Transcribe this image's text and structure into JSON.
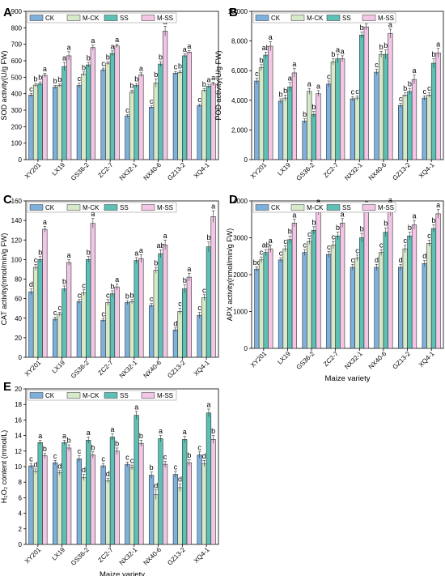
{
  "chart_data": [
    {
      "type": "bar",
      "panel": "A",
      "ylabel": "SOD activity(U/g FW)",
      "xlabel": "",
      "ylim": [
        0,
        900
      ],
      "yticks": [
        0,
        100,
        200,
        300,
        400,
        500,
        600,
        700,
        800,
        900
      ],
      "categories": [
        "XY201",
        "LX19",
        "GS36-2",
        "ZC2-7",
        "NX32-1",
        "NX40-6",
        "GZ13-2",
        "XQ4-1"
      ],
      "legend": "top-left",
      "series": [
        {
          "name": "CK",
          "values": [
            392,
            440,
            450,
            545,
            265,
            318,
            525,
            328
          ],
          "err": [
            10,
            10,
            15,
            10,
            8,
            8,
            10,
            8
          ],
          "letters": [
            "c",
            "b",
            "c",
            "c",
            "c",
            "c",
            "c",
            "c"
          ]
        },
        {
          "name": "M-CK",
          "values": [
            452,
            450,
            520,
            585,
            410,
            465,
            530,
            420
          ],
          "err": [
            10,
            10,
            12,
            10,
            12,
            25,
            10,
            10
          ],
          "letters": [
            "b",
            "b",
            "b",
            "b",
            "b",
            "b",
            "b",
            "b"
          ]
        },
        {
          "name": "SS",
          "values": [
            460,
            565,
            575,
            645,
            450,
            580,
            630,
            445
          ],
          "err": [
            12,
            25,
            15,
            15,
            12,
            15,
            12,
            12
          ],
          "letters": [
            "b",
            "a",
            "b",
            "a",
            "b",
            "b",
            "a",
            "a"
          ]
        },
        {
          "name": "M-SS",
          "values": [
            512,
            630,
            680,
            690,
            515,
            780,
            652,
            460
          ],
          "err": [
            12,
            25,
            15,
            10,
            12,
            30,
            10,
            10
          ],
          "letters": [
            "a",
            "a",
            "a",
            "a",
            "a",
            "a",
            "a",
            "a"
          ]
        }
      ]
    },
    {
      "type": "bar",
      "panel": "B",
      "ylabel": "POD activity(U/g FW)",
      "xlabel": "",
      "ylim": [
        0,
        10000
      ],
      "yticks": [
        0,
        2000,
        4000,
        6000,
        8000,
        10000
      ],
      "ytick_labels": [
        "0",
        "2,000",
        "4,000",
        "6,000",
        "8,000",
        "10,000"
      ],
      "categories": [
        "XY201",
        "LX19",
        "GS36-2",
        "ZC2-7",
        "NX32-1",
        "NX40-6",
        "GZ13-2",
        "XQ4-1"
      ],
      "legend": "top-left",
      "series": [
        {
          "name": "CK",
          "values": [
            5300,
            3950,
            2600,
            5100,
            4100,
            5900,
            3650,
            4150
          ],
          "err": [
            200,
            150,
            150,
            200,
            150,
            200,
            150,
            150
          ],
          "letters": [
            "c",
            "b",
            "b",
            "c",
            "c",
            "c",
            "c",
            "c"
          ]
        },
        {
          "name": "M-CK",
          "values": [
            6200,
            4150,
            4600,
            6600,
            4150,
            7100,
            4350,
            4350
          ],
          "err": [
            200,
            200,
            200,
            200,
            150,
            200,
            150,
            150
          ],
          "letters": [
            "b",
            "b",
            "a",
            "b",
            "c",
            "b",
            "b",
            "c"
          ]
        },
        {
          "name": "SS",
          "values": [
            7050,
            4900,
            3050,
            6800,
            8400,
            7100,
            4600,
            6500
          ],
          "err": [
            200,
            300,
            200,
            300,
            200,
            300,
            200,
            300
          ],
          "letters": [
            "ab",
            "a",
            "b",
            "a",
            "b",
            "b",
            "b",
            "b"
          ]
        },
        {
          "name": "M-SS",
          "values": [
            7650,
            5850,
            4450,
            6800,
            8950,
            8500,
            5400,
            7200
          ],
          "err": [
            300,
            300,
            200,
            200,
            200,
            300,
            300,
            300
          ],
          "letters": [
            "a",
            "a",
            "a",
            "a",
            "a",
            "a",
            "a",
            "a"
          ]
        }
      ]
    },
    {
      "type": "bar",
      "panel": "C",
      "ylabel": "CAT activity(nmol/min/g FW)",
      "xlabel": "",
      "ylim": [
        0,
        160
      ],
      "yticks": [
        0,
        20,
        40,
        60,
        80,
        100,
        120,
        140,
        160
      ],
      "categories": [
        "XY201",
        "LX19",
        "GS36-2",
        "ZC2-7",
        "NX32-1",
        "NX40-6",
        "GZ13-2",
        "XQ4-1"
      ],
      "legend": "top-left",
      "series": [
        {
          "name": "CK",
          "values": [
            67,
            39,
            57,
            38,
            56,
            53,
            28,
            43
          ],
          "err": [
            3,
            2,
            2,
            2,
            2,
            2,
            2,
            3
          ],
          "letters": [
            "d",
            "c",
            "c",
            "c",
            "b",
            "c",
            "d",
            "c"
          ]
        },
        {
          "name": "M-CK",
          "values": [
            92,
            44,
            66,
            56,
            57,
            89,
            47,
            61
          ],
          "err": [
            3,
            2,
            3,
            3,
            2,
            3,
            3,
            3
          ],
          "letters": [
            "c",
            "c",
            "c",
            "c",
            "b",
            "b",
            "c",
            "c"
          ]
        },
        {
          "name": "SS",
          "values": [
            100,
            70,
            100,
            65,
            99,
            106,
            70,
            113
          ],
          "err": [
            3,
            3,
            3,
            3,
            3,
            4,
            4,
            5
          ],
          "letters": [
            "b",
            "b",
            "b",
            "b",
            "a",
            "ab",
            "b",
            "b"
          ]
        },
        {
          "name": "M-SS",
          "values": [
            131,
            97,
            137,
            72,
            101,
            115,
            82,
            144
          ],
          "err": [
            3,
            3,
            5,
            3,
            4,
            5,
            4,
            6
          ],
          "letters": [
            "a",
            "a",
            "a",
            "a",
            "a",
            "a",
            "a",
            "a"
          ]
        }
      ]
    },
    {
      "type": "bar",
      "panel": "D",
      "ylabel": "APX activity(nmol/min/g FW)",
      "xlabel": "Maize variety",
      "ylim": [
        0,
        4000
      ],
      "yticks": [
        0,
        1000,
        2000,
        3000,
        4000
      ],
      "categories": [
        "XY201",
        "LX19",
        "GS36-2",
        "ZC2-7",
        "NX32-1",
        "NX40-6",
        "GZ13-2",
        "XQ4-1"
      ],
      "legend": "top-left",
      "series": [
        {
          "name": "CK",
          "values": [
            2150,
            2400,
            2600,
            2550,
            2200,
            2200,
            2200,
            2300
          ],
          "err": [
            60,
            60,
            80,
            80,
            80,
            80,
            80,
            80
          ],
          "letters": [
            "bc",
            "c",
            "c",
            "c",
            "c",
            "d",
            "d",
            "d"
          ]
        },
        {
          "name": "M-CK",
          "values": [
            2400,
            2700,
            2900,
            2800,
            2450,
            2600,
            2700,
            2850
          ],
          "err": [
            80,
            80,
            80,
            100,
            80,
            80,
            100,
            80
          ],
          "letters": [
            "c",
            "c",
            "c",
            "c",
            "c",
            "c",
            "c",
            "c"
          ]
        },
        {
          "name": "SS",
          "values": [
            2600,
            2950,
            3200,
            3050,
            3000,
            3150,
            3050,
            3250
          ],
          "err": [
            80,
            100,
            100,
            100,
            120,
            120,
            100,
            100
          ],
          "letters": [
            "ab",
            "b",
            "b",
            "b",
            "b",
            "b",
            "b",
            "b"
          ]
        },
        {
          "name": "M-SS",
          "values": [
            2700,
            3400,
            3750,
            3400,
            3750,
            3750,
            3350,
            3650
          ],
          "err": [
            100,
            100,
            120,
            120,
            80,
            150,
            120,
            120
          ],
          "letters": [
            "a",
            "a",
            "a",
            "a",
            "a",
            "a",
            "a",
            "a"
          ]
        }
      ]
    },
    {
      "type": "bar",
      "panel": "E",
      "ylabel": "H₂O₂ content (mmol/L)",
      "xlabel": "Maize variety",
      "ylim": [
        0,
        20
      ],
      "yticks": [
        0,
        2,
        4,
        6,
        8,
        10,
        12,
        14,
        16,
        18,
        20
      ],
      "categories": [
        "XY201",
        "LX19",
        "GS36-2",
        "ZC2-7",
        "NX32-1",
        "NX40-6",
        "GZ13-2",
        "XQ4-1"
      ],
      "legend": "top-left",
      "series": [
        {
          "name": "CK",
          "values": [
            10.1,
            10.5,
            11.0,
            10.1,
            10.3,
            8.9,
            9.0,
            11.5
          ],
          "err": [
            0.3,
            0.3,
            0.4,
            0.3,
            0.3,
            0.4,
            0.4,
            0.4
          ],
          "letters": [
            "c",
            "c",
            "c",
            "c",
            "c",
            "b",
            "c",
            "c"
          ]
        },
        {
          "name": "M-CK",
          "values": [
            9.4,
            9.2,
            8.6,
            8.2,
            9.9,
            6.4,
            7.3,
            10.4
          ],
          "err": [
            0.3,
            0.3,
            0.4,
            0.3,
            0.3,
            0.6,
            0.5,
            0.4
          ],
          "letters": [
            "d",
            "d",
            "d",
            "d",
            "c",
            "d",
            "d",
            "d"
          ]
        },
        {
          "name": "SS",
          "values": [
            13.1,
            13.1,
            13.4,
            13.8,
            16.6,
            13.6,
            13.5,
            16.9
          ],
          "err": [
            0.3,
            0.3,
            0.4,
            0.4,
            0.5,
            0.4,
            0.4,
            0.5
          ],
          "letters": [
            "a",
            "a",
            "a",
            "a",
            "a",
            "a",
            "a",
            "a"
          ]
        },
        {
          "name": "M-SS",
          "values": [
            11.4,
            12.4,
            11.5,
            12.0,
            13.0,
            10.3,
            10.5,
            13.5
          ],
          "err": [
            0.3,
            0.4,
            0.4,
            0.4,
            0.4,
            0.4,
            0.4,
            0.5
          ],
          "letters": [
            "b",
            "b",
            "b",
            "b",
            "b",
            "c",
            "b",
            "b"
          ]
        }
      ]
    }
  ],
  "colors": {
    "CK": "#7eb0de",
    "M-CK": "#d6eac9",
    "SS": "#5cc0b5",
    "M-SS": "#f3c6e6",
    "edge": "#333333"
  }
}
